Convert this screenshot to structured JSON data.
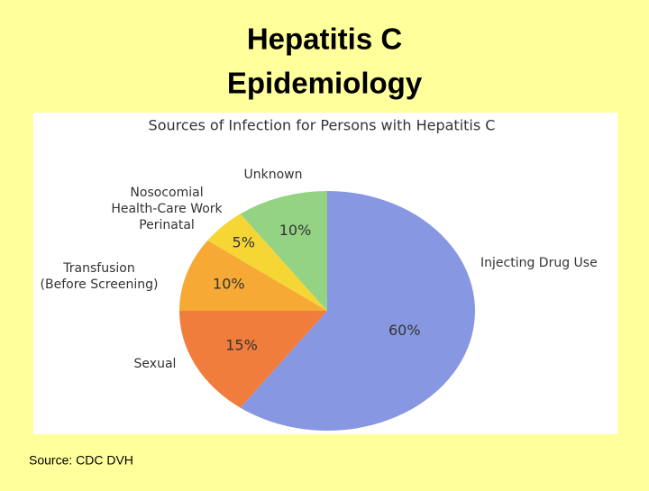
{
  "slide_title": [
    "Hepatitis C",
    "Epidemiology"
  ],
  "source": "Source: CDC DVH",
  "chart_data": {
    "type": "pie",
    "title": "Sources of Infection for Persons with Hepatitis C",
    "categories": [
      "Injecting Drug Use",
      "Sexual",
      "Transfusion\n(Before Screening)",
      "Nosocomial\nHealth-Care Work\nPerinatal",
      "Unknown"
    ],
    "values": [
      60,
      15,
      10,
      5,
      10
    ],
    "value_labels": [
      "60%",
      "15%",
      "10%",
      "5%",
      "10%"
    ],
    "colors": [
      "#8797e2",
      "#f07d3b",
      "#f6a935",
      "#f5d634",
      "#95d384"
    ]
  }
}
